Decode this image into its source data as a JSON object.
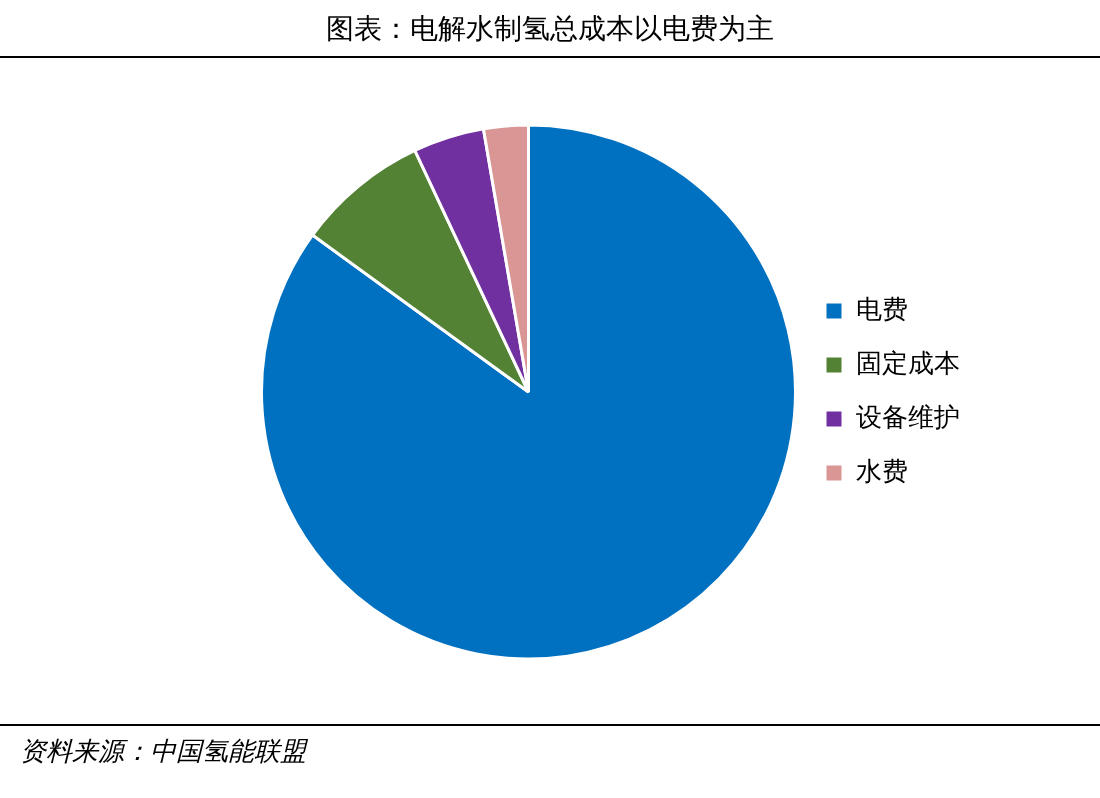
{
  "chart_data": {
    "type": "pie",
    "title": "图表：电解水制氢总成本以电费为主",
    "categories": [
      "电费",
      "固定成本",
      "设备维护",
      "水费"
    ],
    "values": [
      85,
      8,
      4.3,
      2.7
    ],
    "colors": [
      "#0070c0",
      "#548235",
      "#7030a0",
      "#d99694"
    ],
    "legend": "right",
    "annotations": [
      "资料来源：中国氢能联盟"
    ]
  }
}
